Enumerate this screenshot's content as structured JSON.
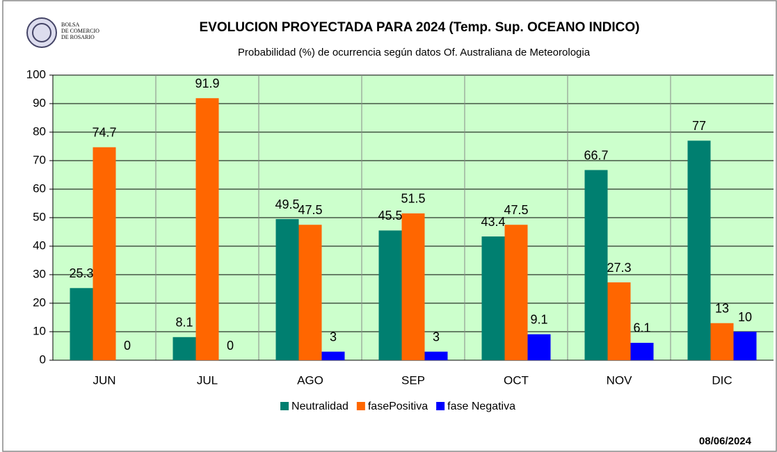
{
  "chart_data": {
    "type": "bar",
    "title": "EVOLUCION PROYECTADA PARA 2024 (Temp. Sup. OCEANO INDICO)",
    "subtitle": "Probabilidad (%) de ocurrencia según datos Of. Australiana de Meteorologia",
    "logo_lines": [
      "BOLSA",
      "DE COMERCIO",
      "DE ROSARIO"
    ],
    "date": "08/06/2024",
    "categories": [
      "JUN",
      "JUL",
      "AGO",
      "SEP",
      "OCT",
      "NOV",
      "DIC"
    ],
    "series": [
      {
        "name": "Neutralidad",
        "color": "#007f70",
        "values": [
          25.3,
          8.1,
          49.5,
          45.5,
          43.4,
          66.7,
          77
        ]
      },
      {
        "name": "fasePositiva",
        "color": "#ff6600",
        "values": [
          74.7,
          91.9,
          47.5,
          51.5,
          47.5,
          27.3,
          13
        ]
      },
      {
        "name": "fase Negativa",
        "color": "#0000ff",
        "values": [
          0,
          0,
          3,
          3,
          9.1,
          6.1,
          10
        ]
      }
    ],
    "ylim": [
      0,
      100
    ],
    "yticks": [
      0,
      10,
      20,
      30,
      40,
      50,
      60,
      70,
      80,
      90,
      100
    ],
    "grid": true,
    "legend": "bottom"
  }
}
